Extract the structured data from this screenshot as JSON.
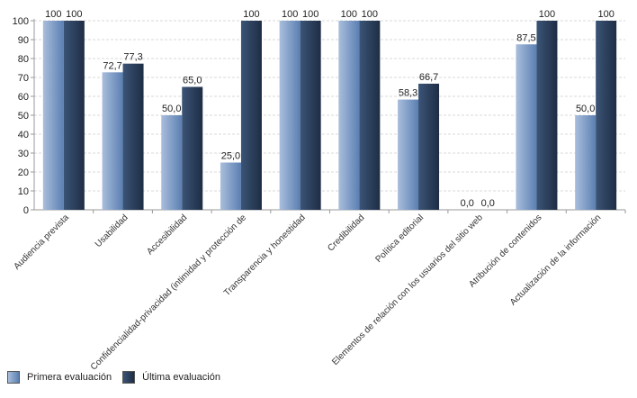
{
  "chart_data": {
    "type": "bar",
    "categories": [
      "Audiencia prevista",
      "Usabilidad",
      "Accesibilidad",
      "Confidencialidad-privacidad (intimidad y protección de",
      "Transparencia y honestidad",
      "Credibilidad",
      "Política editorial",
      "Elementos de relación con los usuarios del sitio web",
      "Atribución de contenidos",
      "Actualización de la información"
    ],
    "series": [
      {
        "name": "Primera evaluación",
        "values": [
          100,
          72.7,
          50.0,
          25.0,
          100,
          100,
          58.3,
          0.0,
          87.5,
          50.0
        ],
        "labels": [
          "100",
          "72,7",
          "50,0",
          "25,0",
          "100",
          "100",
          "58,3",
          "0,0",
          "87,5",
          "50,0"
        ]
      },
      {
        "name": "Última evaluación",
        "values": [
          100,
          77.3,
          65.0,
          100,
          100,
          100,
          66.7,
          0.0,
          100,
          100
        ],
        "labels": [
          "100",
          "77,3",
          "65,0",
          "100",
          "100",
          "100",
          "66,7",
          "0,0",
          "100",
          "100"
        ]
      }
    ],
    "y_ticks": [
      0,
      10,
      20,
      30,
      40,
      50,
      60,
      70,
      80,
      90,
      100
    ],
    "ylim": [
      0,
      100
    ],
    "grid": true,
    "legend_position": "bottom-left"
  },
  "colors": {
    "series0_light": "#a9bedc",
    "series0_dark": "#5b7fb2",
    "series1_light": "#3b5476",
    "series1_dark": "#1e2d45",
    "grid": "#d8d8d8",
    "axis": "#999999"
  }
}
